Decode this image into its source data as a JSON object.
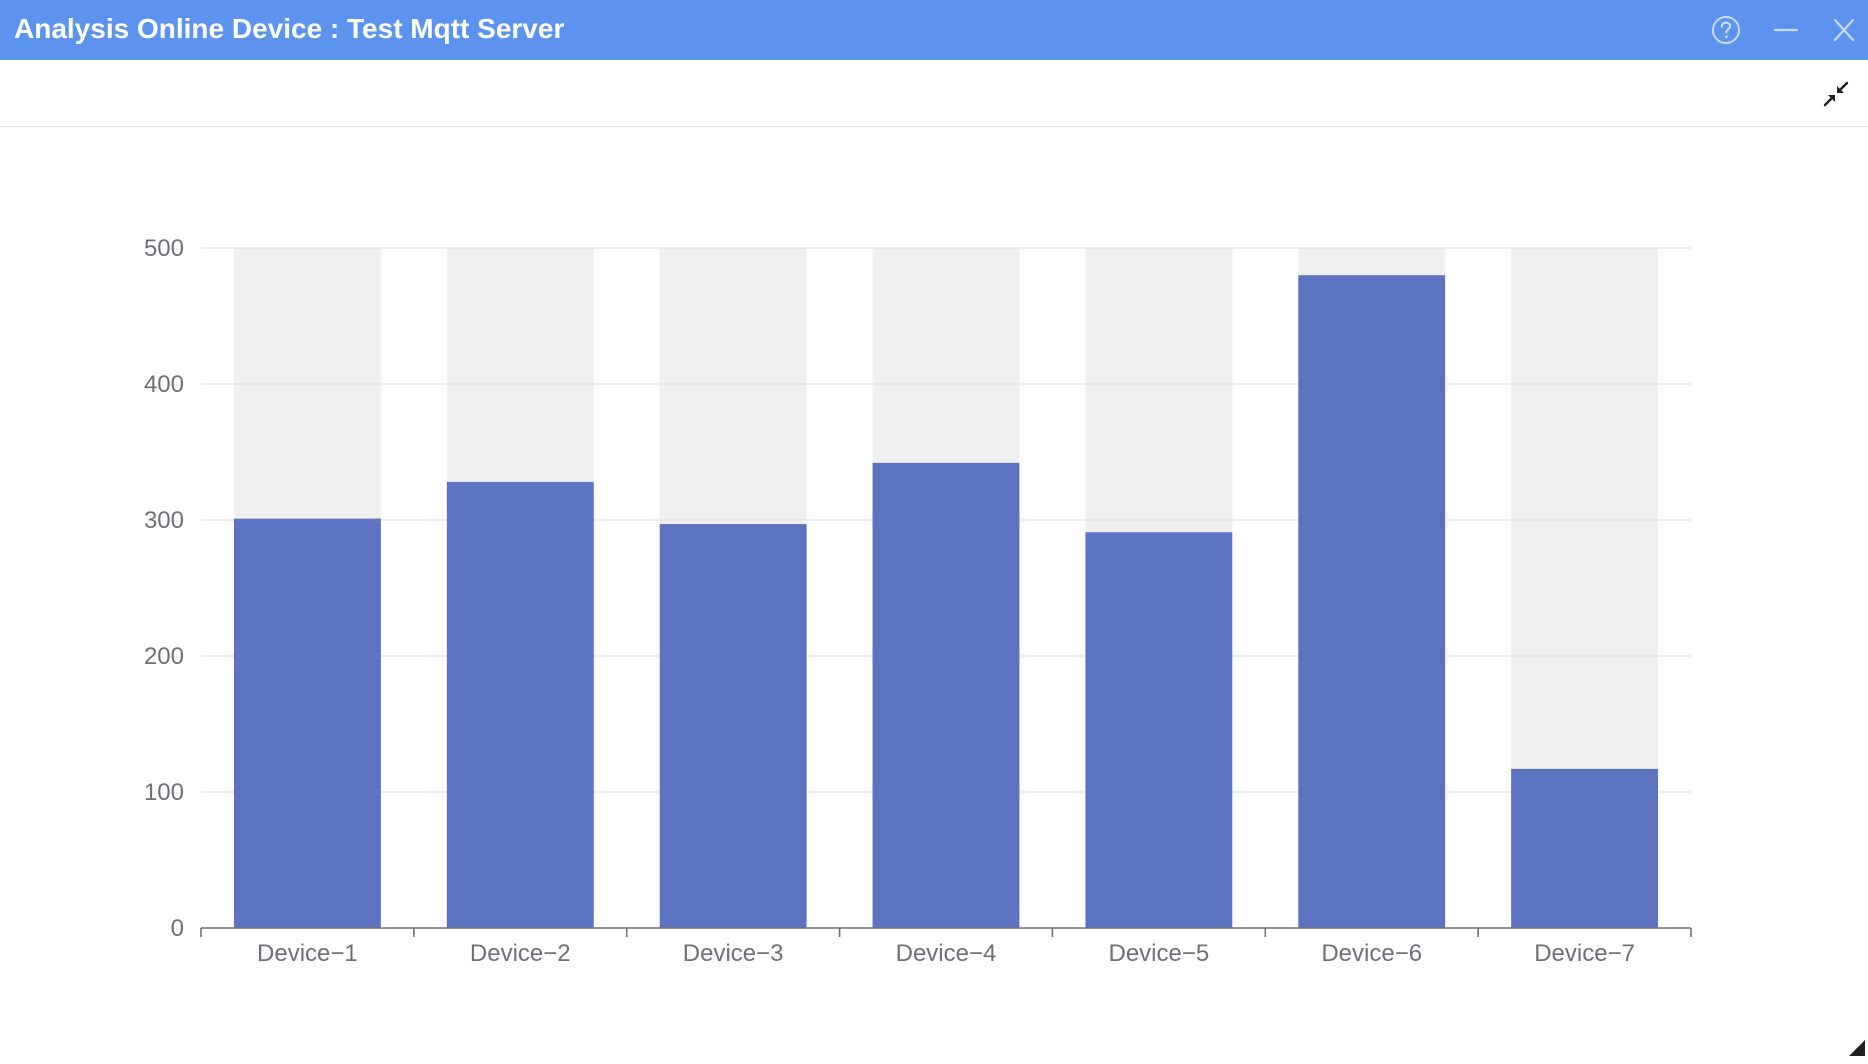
{
  "window": {
    "title": "Analysis Online Device : Test Mqtt Server",
    "titlebar_color": "#5b93ef",
    "icons": {
      "help": "help-circle-icon",
      "minimize": "minimize-icon",
      "close": "close-icon",
      "collapse": "collapse-arrows-icon",
      "resize": "resize-grip-icon"
    }
  },
  "chart_data": {
    "type": "bar",
    "title": "",
    "xlabel": "",
    "ylabel": "",
    "categories": [
      "Device−1",
      "Device−2",
      "Device−3",
      "Device−4",
      "Device−5",
      "Device−6",
      "Device−7"
    ],
    "values": [
      301,
      328,
      297,
      342,
      291,
      480,
      117
    ],
    "ylim": [
      0,
      500
    ],
    "yticks": [
      "0",
      "100",
      "200",
      "300",
      "400",
      "500"
    ],
    "ytick_values": [
      0,
      100,
      200,
      300,
      400,
      500
    ],
    "show_background_bars": true,
    "grid": true,
    "legend": "none",
    "colors": {
      "bar": "#5b73c1",
      "background_bar": "#f0f0f1",
      "grid": "#e0e2e8",
      "axis": "#6e7079",
      "tick_text": "#6e7079"
    }
  }
}
